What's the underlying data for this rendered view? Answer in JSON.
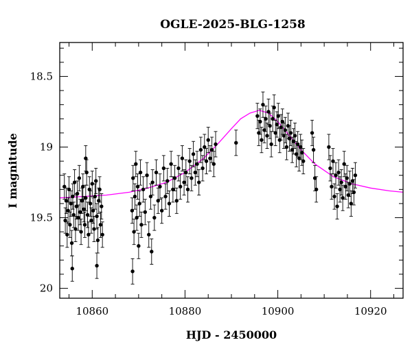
{
  "chart_data": {
    "type": "scatter",
    "title": "OGLE-2025-BLG-1258",
    "xlabel": "HJD - 2450000",
    "ylabel": "I magnitude",
    "xlim": [
      10853,
      10927
    ],
    "ylim": [
      20.07,
      18.26
    ],
    "y_inverted": true,
    "xticks": [
      10860,
      10880,
      10900,
      10920
    ],
    "yticks": [
      18.5,
      19,
      19.5,
      20
    ],
    "ytick_labels": [
      "18.5",
      "19",
      "19.5",
      "20"
    ],
    "grid": false,
    "legend": "none",
    "colors": {
      "data": "#000000",
      "model": "#ff00ff"
    },
    "model": {
      "name": "",
      "type": "point-lens fit",
      "x": [
        10853,
        10858,
        10863,
        10868,
        10872,
        10876,
        10880,
        10884,
        10887,
        10890,
        10892,
        10894,
        10896,
        10898,
        10900,
        10902,
        10905,
        10908,
        10912,
        10916,
        10920,
        10924,
        10927
      ],
      "y": [
        19.36,
        19.35,
        19.34,
        19.32,
        19.29,
        19.25,
        19.18,
        19.08,
        18.98,
        18.87,
        18.8,
        18.76,
        18.74,
        18.76,
        18.82,
        18.9,
        19.02,
        19.12,
        19.21,
        19.26,
        19.29,
        19.31,
        19.32
      ]
    },
    "series": [
      {
        "x": [
          10854.0,
          10854.2,
          10854.4,
          10854.6,
          10854.8,
          10855.0,
          10855.2,
          10855.4,
          10855.6,
          10855.8,
          10856.0,
          10856.2,
          10856.4,
          10856.6,
          10856.8,
          10857.0,
          10857.2,
          10857.4,
          10857.6,
          10857.8,
          10858.0,
          10858.2,
          10858.4,
          10858.6,
          10858.8,
          10859.0,
          10859.2,
          10859.4,
          10859.6,
          10859.8,
          10860.0,
          10860.2,
          10860.4,
          10860.6,
          10860.8,
          10861.0,
          10861.2,
          10861.4,
          10861.6,
          10861.8,
          10862.0,
          10862.2,
          10855.7,
          10858.6,
          10861.0,
          10868.6,
          10868.8,
          10869.0,
          10869.2,
          10869.4,
          10869.6,
          10869.8,
          10870.0,
          10870.2,
          10870.4,
          10870.6,
          10871.0,
          10871.4,
          10871.8,
          10872.2,
          10872.6,
          10873.0,
          10873.4,
          10873.8,
          10874.2,
          10874.6,
          10875.0,
          10875.4,
          10875.8,
          10876.2,
          10876.6,
          10877.0,
          10877.4,
          10877.8,
          10878.2,
          10878.6,
          10879.0,
          10879.4,
          10879.8,
          10880.2,
          10880.6,
          10881.0,
          10881.4,
          10881.8,
          10882.2,
          10882.6,
          10883.0,
          10883.4,
          10883.8,
          10884.2,
          10884.6,
          10885.0,
          10885.4,
          10885.8,
          10886.2,
          10886.6,
          10868.7,
          10872.8,
          10891.0,
          10895.6,
          10895.9,
          10896.2,
          10896.5,
          10896.8,
          10897.1,
          10897.4,
          10897.7,
          10898.0,
          10898.3,
          10898.6,
          10898.9,
          10899.2,
          10899.5,
          10899.8,
          10900.1,
          10900.4,
          10900.7,
          10901.0,
          10901.3,
          10901.6,
          10901.9,
          10902.2,
          10902.5,
          10902.8,
          10903.1,
          10903.4,
          10903.7,
          10904.0,
          10904.3,
          10904.6,
          10904.9,
          10905.2,
          10905.5,
          10907.4,
          10907.7,
          10908.0,
          10908.3,
          10911.0,
          10911.3,
          10911.6,
          10911.9,
          10912.2,
          10912.5,
          10912.8,
          10913.1,
          10913.4,
          10913.7,
          10914.0,
          10914.3,
          10914.6,
          10914.9,
          10915.2,
          10915.5,
          10915.8,
          10916.1,
          10916.4,
          10916.7
        ],
        "y": [
          19.28,
          19.52,
          19.38,
          19.62,
          19.45,
          19.3,
          19.55,
          19.4,
          19.68,
          19.35,
          19.48,
          19.25,
          19.58,
          19.42,
          19.33,
          19.5,
          19.22,
          19.46,
          19.6,
          19.38,
          19.28,
          19.44,
          19.55,
          19.36,
          19.18,
          19.48,
          19.62,
          19.3,
          19.4,
          19.52,
          19.26,
          19.45,
          19.58,
          19.35,
          19.24,
          19.49,
          19.66,
          19.38,
          19.3,
          19.55,
          19.42,
          19.62,
          19.86,
          19.08,
          19.84,
          19.45,
          19.22,
          19.6,
          19.35,
          19.12,
          19.5,
          19.28,
          19.7,
          19.4,
          19.18,
          19.55,
          19.3,
          19.46,
          19.2,
          19.62,
          19.35,
          19.25,
          19.5,
          19.18,
          19.38,
          19.28,
          19.45,
          19.15,
          19.35,
          19.24,
          19.4,
          19.12,
          19.3,
          19.22,
          19.38,
          19.15,
          19.28,
          19.08,
          19.25,
          19.18,
          19.3,
          19.1,
          19.22,
          19.05,
          19.18,
          19.12,
          19.25,
          19.02,
          19.15,
          19.0,
          19.1,
          18.95,
          19.08,
          19.02,
          19.12,
          18.98,
          19.88,
          19.74,
          18.97,
          18.78,
          18.9,
          18.82,
          18.95,
          18.7,
          18.88,
          18.8,
          18.92,
          18.75,
          18.85,
          18.98,
          18.8,
          18.72,
          18.9,
          18.84,
          18.78,
          18.95,
          18.86,
          18.82,
          18.92,
          18.88,
          19.0,
          18.85,
          18.94,
          18.9,
          19.02,
          18.96,
          18.92,
          19.05,
          18.98,
          19.08,
          19.0,
          19.04,
          19.1,
          18.9,
          19.02,
          19.22,
          19.3,
          19.0,
          19.15,
          19.28,
          19.1,
          19.35,
          19.2,
          19.42,
          19.18,
          19.3,
          19.25,
          19.36,
          19.12,
          19.28,
          19.22,
          19.34,
          19.26,
          19.4,
          19.24,
          19.32,
          19.2
        ],
        "yerr": 0.09
      }
    ]
  }
}
